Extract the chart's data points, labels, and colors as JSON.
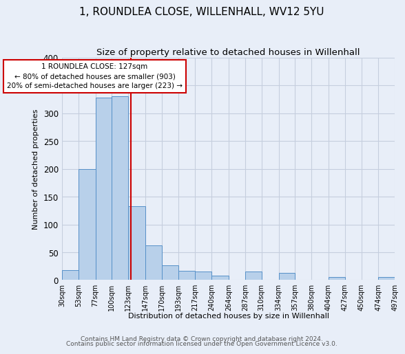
{
  "title": "1, ROUNDLEA CLOSE, WILLENHALL, WV12 5YU",
  "subtitle": "Size of property relative to detached houses in Willenhall",
  "xlabel": "Distribution of detached houses by size in Willenhall",
  "ylabel": "Number of detached properties",
  "bin_edges": [
    30,
    53,
    77,
    100,
    123,
    147,
    170,
    193,
    217,
    240,
    264,
    287,
    310,
    334,
    357,
    380,
    404,
    427,
    450,
    474,
    497
  ],
  "bin_heights": [
    18,
    200,
    328,
    330,
    133,
    62,
    27,
    17,
    16,
    8,
    0,
    15,
    0,
    13,
    0,
    0,
    5,
    0,
    0,
    5
  ],
  "bar_color": "#b8d0ea",
  "bar_edge_color": "#5590c8",
  "vline_color": "#cc0000",
  "vline_x": 127,
  "annotation_text": "1 ROUNDLEA CLOSE: 127sqm\n← 80% of detached houses are smaller (903)\n20% of semi-detached houses are larger (223) →",
  "annotation_box_color": "#ffffff",
  "annotation_box_edge_color": "#cc0000",
  "ylim": [
    0,
    400
  ],
  "yticks": [
    0,
    50,
    100,
    150,
    200,
    250,
    300,
    350,
    400
  ],
  "tick_labels": [
    "30sqm",
    "53sqm",
    "77sqm",
    "100sqm",
    "123sqm",
    "147sqm",
    "170sqm",
    "193sqm",
    "217sqm",
    "240sqm",
    "264sqm",
    "287sqm",
    "310sqm",
    "334sqm",
    "357sqm",
    "380sqm",
    "404sqm",
    "427sqm",
    "450sqm",
    "474sqm",
    "497sqm"
  ],
  "footer1": "Contains HM Land Registry data © Crown copyright and database right 2024.",
  "footer2": "Contains public sector information licensed under the Open Government Licence v3.0.",
  "bg_color": "#e8eef8",
  "plot_bg_color": "#e8eef8",
  "title_fontsize": 11,
  "subtitle_fontsize": 9.5,
  "axis_label_fontsize": 8,
  "tick_fontsize": 7,
  "footer_fontsize": 6.5
}
